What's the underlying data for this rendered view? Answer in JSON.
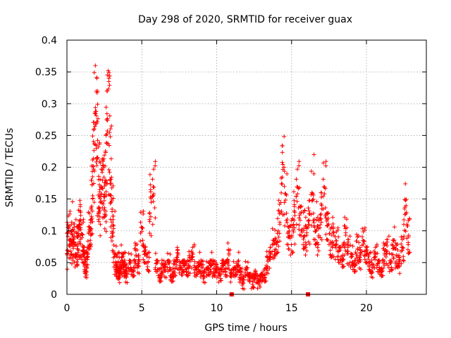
{
  "chart_data": {
    "type": "scatter",
    "title": "Day 298 of 2020, SRMTID for receiver guax",
    "xlabel": "GPS time / hours",
    "ylabel": "SRMTID / TECUs",
    "xlim": [
      0,
      24
    ],
    "ylim": [
      0,
      0.4
    ],
    "xticks": [
      0,
      5,
      10,
      15,
      20
    ],
    "xtick_labels": [
      "0",
      "5",
      "10",
      "15",
      "20"
    ],
    "yticks": [
      0,
      0.05,
      0.1,
      0.15,
      0.2,
      0.25,
      0.3,
      0.35,
      0.4
    ],
    "ytick_labels": [
      "0",
      "0.05",
      "0.1",
      "0.15",
      "0.2",
      "0.25",
      "0.3",
      "0.35",
      "0.4"
    ],
    "grid": true,
    "marker": "+",
    "color": "#ff0000",
    "series": [
      {
        "name": "SRMTID",
        "x": [
          0.0,
          0.1,
          0.2,
          0.3,
          0.4,
          0.5,
          0.6,
          0.7,
          0.8,
          0.9,
          1.0,
          1.1,
          1.2,
          1.3,
          1.4,
          1.5,
          1.6,
          1.7,
          1.8,
          1.9,
          2.0,
          2.1,
          2.2,
          2.3,
          2.4,
          2.5,
          2.6,
          2.7,
          2.8,
          2.9,
          3.0,
          3.1,
          3.2,
          3.3,
          3.4,
          3.5,
          3.6,
          3.7,
          3.8,
          3.9,
          4.0,
          4.2,
          4.4,
          4.6,
          4.8,
          5.0,
          5.2,
          5.4,
          5.6,
          5.8,
          6.0,
          6.2,
          6.4,
          6.6,
          6.8,
          7.0,
          7.2,
          7.4,
          7.6,
          7.8,
          8.0,
          8.2,
          8.4,
          8.6,
          8.8,
          9.0,
          9.2,
          9.4,
          9.6,
          9.8,
          10.0,
          10.2,
          10.4,
          10.6,
          10.8,
          11.0,
          11.2,
          11.4,
          11.6,
          11.8,
          12.0,
          12.2,
          12.4,
          12.6,
          12.8,
          13.0,
          13.2,
          13.4,
          13.6,
          13.8,
          14.0,
          14.2,
          14.4,
          14.6,
          14.8,
          15.0,
          15.2,
          15.4,
          15.6,
          15.8,
          16.0,
          16.2,
          16.4,
          16.6,
          16.8,
          17.0,
          17.2,
          17.4,
          17.6,
          17.8,
          18.0,
          18.2,
          18.4,
          18.6,
          18.8,
          19.0,
          19.2,
          19.4,
          19.6,
          19.8,
          20.0,
          20.2,
          20.4,
          20.6,
          20.8,
          21.0,
          21.2,
          21.4,
          21.6,
          21.8,
          22.0,
          22.2,
          22.4,
          22.6,
          22.8,
          1.9,
          2.0,
          2.7,
          2.8,
          14.5,
          16.5,
          22.6
        ],
        "y": [
          0.06,
          0.1,
          0.08,
          0.11,
          0.07,
          0.09,
          0.06,
          0.1,
          0.08,
          0.12,
          0.09,
          0.07,
          0.05,
          0.04,
          0.06,
          0.1,
          0.13,
          0.15,
          0.22,
          0.27,
          0.3,
          0.18,
          0.14,
          0.16,
          0.2,
          0.17,
          0.15,
          0.26,
          0.33,
          0.2,
          0.13,
          0.1,
          0.06,
          0.04,
          0.05,
          0.03,
          0.04,
          0.06,
          0.05,
          0.04,
          0.03,
          0.05,
          0.04,
          0.06,
          0.05,
          0.1,
          0.07,
          0.05,
          0.14,
          0.16,
          0.05,
          0.03,
          0.04,
          0.04,
          0.05,
          0.03,
          0.04,
          0.06,
          0.04,
          0.05,
          0.04,
          0.05,
          0.06,
          0.04,
          0.05,
          0.04,
          0.03,
          0.04,
          0.05,
          0.04,
          0.04,
          0.03,
          0.05,
          0.04,
          0.06,
          0.03,
          0.04,
          0.05,
          0.03,
          0.02,
          0.04,
          0.03,
          0.02,
          0.03,
          0.02,
          0.03,
          0.03,
          0.05,
          0.06,
          0.08,
          0.09,
          0.11,
          0.19,
          0.15,
          0.1,
          0.09,
          0.12,
          0.16,
          0.13,
          0.1,
          0.09,
          0.12,
          0.15,
          0.11,
          0.09,
          0.13,
          0.16,
          0.12,
          0.08,
          0.09,
          0.08,
          0.07,
          0.06,
          0.09,
          0.07,
          0.06,
          0.05,
          0.07,
          0.06,
          0.08,
          0.07,
          0.05,
          0.04,
          0.06,
          0.05,
          0.04,
          0.06,
          0.07,
          0.05,
          0.08,
          0.06,
          0.05,
          0.07,
          0.14,
          0.09,
          0.36,
          0.34,
          0.345,
          0.335,
          0.2,
          0.22,
          0.174
        ]
      }
    ],
    "series_seeded_fill": true,
    "markers_on_axis": [
      {
        "x": 11.0,
        "y": 0
      },
      {
        "x": 16.1,
        "y": 0
      }
    ]
  }
}
